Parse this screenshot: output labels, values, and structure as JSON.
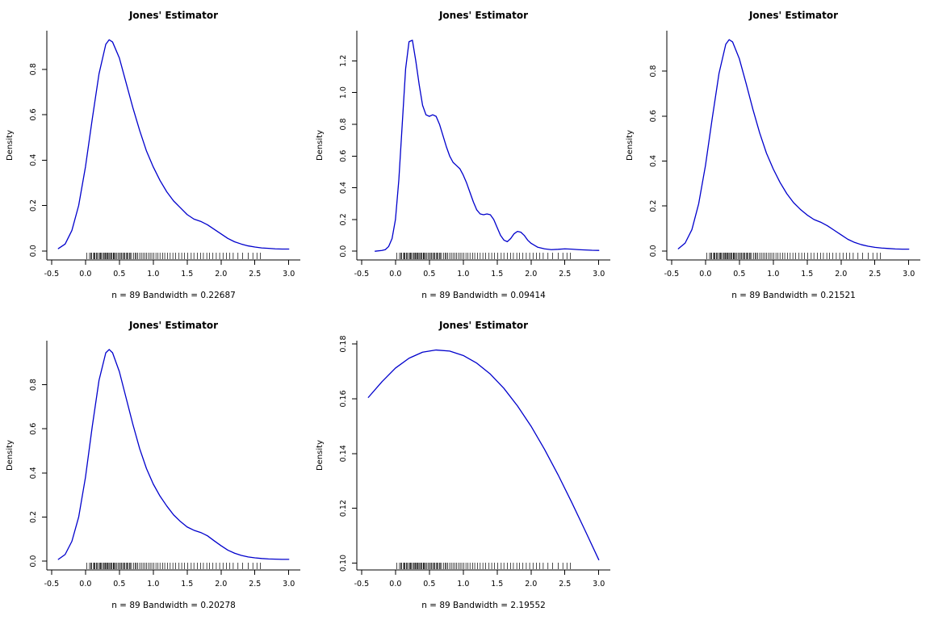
{
  "chart_data": {
    "type": "line",
    "layout": {
      "rows": 2,
      "cols": 3,
      "grid": false,
      "legend": "none",
      "style": "r-base-density"
    },
    "shared": {
      "title": "Jones' Estimator",
      "ylabel": "Density",
      "line_color": "#0000cc",
      "axis_color": "#000000",
      "xlim": [
        -0.57,
        3.17
      ],
      "xticks": [
        -0.5,
        0.0,
        0.5,
        1.0,
        1.5,
        2.0,
        2.5,
        3.0
      ],
      "xtick_labels": [
        "-0.5",
        "0.0",
        "0.5",
        "1.0",
        "1.5",
        "2.0",
        "2.5",
        "3.0"
      ],
      "n": 89,
      "rug_x": [
        0.02,
        0.06,
        0.08,
        0.09,
        0.12,
        0.13,
        0.14,
        0.16,
        0.17,
        0.19,
        0.21,
        0.22,
        0.23,
        0.25,
        0.27,
        0.275,
        0.29,
        0.3,
        0.315,
        0.33,
        0.335,
        0.35,
        0.37,
        0.375,
        0.39,
        0.41,
        0.415,
        0.43,
        0.44,
        0.46,
        0.48,
        0.5,
        0.515,
        0.53,
        0.55,
        0.565,
        0.58,
        0.6,
        0.615,
        0.63,
        0.65,
        0.66,
        0.68,
        0.71,
        0.735,
        0.75,
        0.77,
        0.8,
        0.825,
        0.85,
        0.875,
        0.9,
        0.93,
        0.955,
        0.98,
        1.01,
        1.04,
        1.07,
        1.1,
        1.14,
        1.17,
        1.21,
        1.25,
        1.29,
        1.33,
        1.38,
        1.42,
        1.46,
        1.51,
        1.56,
        1.6,
        1.65,
        1.7,
        1.74,
        1.79,
        1.83,
        1.88,
        1.93,
        1.98,
        2.03,
        2.08,
        2.13,
        2.18,
        2.25,
        2.32,
        2.4,
        2.47,
        2.53,
        2.58
      ]
    },
    "plots": [
      {
        "subtitle": "n = 89 Bandwidth = 0.22687",
        "bandwidth": 0.22687,
        "ylim": [
          -0.04,
          0.97
        ],
        "yticks": [
          0.0,
          0.2,
          0.4,
          0.6,
          0.8
        ],
        "ytick_labels": [
          "0.0",
          "0.2",
          "0.4",
          "0.6",
          "0.8"
        ],
        "x": [
          -0.4,
          -0.3,
          -0.2,
          -0.1,
          0.0,
          0.1,
          0.2,
          0.3,
          0.35,
          0.4,
          0.5,
          0.6,
          0.7,
          0.8,
          0.9,
          1.0,
          1.1,
          1.2,
          1.3,
          1.4,
          1.5,
          1.6,
          1.7,
          1.8,
          1.9,
          2.0,
          2.1,
          2.2,
          2.3,
          2.4,
          2.5,
          2.6,
          2.7,
          2.8,
          2.9,
          3.0
        ],
        "y": [
          0.01,
          0.03,
          0.09,
          0.2,
          0.37,
          0.58,
          0.78,
          0.91,
          0.93,
          0.92,
          0.85,
          0.74,
          0.63,
          0.53,
          0.44,
          0.37,
          0.31,
          0.26,
          0.22,
          0.19,
          0.16,
          0.14,
          0.13,
          0.115,
          0.095,
          0.075,
          0.055,
          0.04,
          0.03,
          0.022,
          0.017,
          0.013,
          0.011,
          0.009,
          0.008,
          0.008
        ]
      },
      {
        "subtitle": "n = 89 Bandwidth = 0.09414",
        "bandwidth": 0.09414,
        "ylim": [
          -0.055,
          1.39
        ],
        "yticks": [
          0.0,
          0.2,
          0.4,
          0.6,
          0.8,
          1.0,
          1.2
        ],
        "ytick_labels": [
          "0.0",
          "0.2",
          "0.4",
          "0.6",
          "0.8",
          "1.0",
          "1.2"
        ],
        "x": [
          -0.3,
          -0.2,
          -0.15,
          -0.1,
          -0.05,
          0.0,
          0.05,
          0.1,
          0.15,
          0.2,
          0.25,
          0.3,
          0.35,
          0.4,
          0.45,
          0.5,
          0.55,
          0.6,
          0.65,
          0.7,
          0.75,
          0.8,
          0.85,
          0.9,
          0.95,
          1.0,
          1.05,
          1.1,
          1.15,
          1.2,
          1.25,
          1.3,
          1.35,
          1.4,
          1.45,
          1.5,
          1.55,
          1.6,
          1.65,
          1.7,
          1.75,
          1.8,
          1.85,
          1.9,
          1.95,
          2.0,
          2.1,
          2.2,
          2.3,
          2.4,
          2.5,
          2.6,
          2.7,
          2.8,
          2.9,
          3.0
        ],
        "y": [
          0.0,
          0.005,
          0.01,
          0.03,
          0.08,
          0.2,
          0.45,
          0.8,
          1.15,
          1.32,
          1.33,
          1.2,
          1.05,
          0.92,
          0.86,
          0.85,
          0.86,
          0.85,
          0.8,
          0.73,
          0.66,
          0.6,
          0.56,
          0.54,
          0.52,
          0.48,
          0.43,
          0.37,
          0.31,
          0.26,
          0.235,
          0.23,
          0.235,
          0.23,
          0.2,
          0.15,
          0.1,
          0.07,
          0.06,
          0.08,
          0.11,
          0.125,
          0.12,
          0.1,
          0.07,
          0.05,
          0.025,
          0.015,
          0.01,
          0.012,
          0.015,
          0.013,
          0.01,
          0.008,
          0.006,
          0.005
        ]
      },
      {
        "subtitle": "n = 89 Bandwidth = 0.21521",
        "bandwidth": 0.21521,
        "ylim": [
          -0.04,
          0.98
        ],
        "yticks": [
          0.0,
          0.2,
          0.4,
          0.6,
          0.8
        ],
        "ytick_labels": [
          "0.0",
          "0.2",
          "0.4",
          "0.6",
          "0.8"
        ],
        "x": [
          -0.4,
          -0.3,
          -0.2,
          -0.1,
          0.0,
          0.1,
          0.2,
          0.3,
          0.35,
          0.4,
          0.5,
          0.6,
          0.7,
          0.8,
          0.9,
          1.0,
          1.1,
          1.2,
          1.3,
          1.4,
          1.5,
          1.6,
          1.7,
          1.8,
          1.9,
          2.0,
          2.1,
          2.2,
          2.3,
          2.4,
          2.5,
          2.6,
          2.7,
          2.8,
          2.9,
          3.0
        ],
        "y": [
          0.01,
          0.035,
          0.095,
          0.21,
          0.38,
          0.59,
          0.79,
          0.92,
          0.94,
          0.93,
          0.855,
          0.745,
          0.63,
          0.525,
          0.435,
          0.365,
          0.305,
          0.255,
          0.215,
          0.185,
          0.16,
          0.14,
          0.128,
          0.112,
          0.092,
          0.072,
          0.052,
          0.038,
          0.028,
          0.021,
          0.016,
          0.013,
          0.011,
          0.009,
          0.008,
          0.008
        ]
      },
      {
        "subtitle": "n = 89 Bandwidth = 0.20278",
        "bandwidth": 0.20278,
        "ylim": [
          -0.04,
          1.0
        ],
        "yticks": [
          0.0,
          0.2,
          0.4,
          0.6,
          0.8
        ],
        "ytick_labels": [
          "0.0",
          "0.2",
          "0.4",
          "0.6",
          "0.8"
        ],
        "x": [
          -0.4,
          -0.3,
          -0.2,
          -0.1,
          0.0,
          0.1,
          0.2,
          0.3,
          0.35,
          0.4,
          0.5,
          0.6,
          0.7,
          0.8,
          0.9,
          1.0,
          1.1,
          1.2,
          1.3,
          1.4,
          1.5,
          1.6,
          1.7,
          1.8,
          1.9,
          2.0,
          2.1,
          2.2,
          2.3,
          2.4,
          2.5,
          2.6,
          2.7,
          2.8,
          2.9,
          3.0
        ],
        "y": [
          0.008,
          0.03,
          0.09,
          0.2,
          0.38,
          0.61,
          0.82,
          0.945,
          0.96,
          0.945,
          0.86,
          0.74,
          0.62,
          0.51,
          0.42,
          0.35,
          0.295,
          0.25,
          0.21,
          0.18,
          0.155,
          0.14,
          0.13,
          0.115,
          0.092,
          0.07,
          0.05,
          0.036,
          0.026,
          0.019,
          0.015,
          0.012,
          0.01,
          0.009,
          0.008,
          0.008
        ]
      },
      {
        "subtitle": "n = 89 Bandwidth = 2.19552",
        "bandwidth": 2.19552,
        "ylim": [
          0.0975,
          0.1812
        ],
        "yticks": [
          0.1,
          0.12,
          0.14,
          0.16,
          0.18
        ],
        "ytick_labels": [
          "0.10",
          "0.12",
          "0.14",
          "0.16",
          "0.18"
        ],
        "x": [
          -0.4,
          -0.2,
          0.0,
          0.2,
          0.4,
          0.6,
          0.8,
          1.0,
          1.2,
          1.4,
          1.6,
          1.8,
          2.0,
          2.2,
          2.4,
          2.6,
          2.8,
          3.0
        ],
        "y": [
          0.1605,
          0.1662,
          0.1712,
          0.1748,
          0.177,
          0.1778,
          0.1774,
          0.1758,
          0.173,
          0.169,
          0.1638,
          0.1574,
          0.15,
          0.1415,
          0.1322,
          0.1222,
          0.1118,
          0.1012
        ]
      }
    ]
  }
}
